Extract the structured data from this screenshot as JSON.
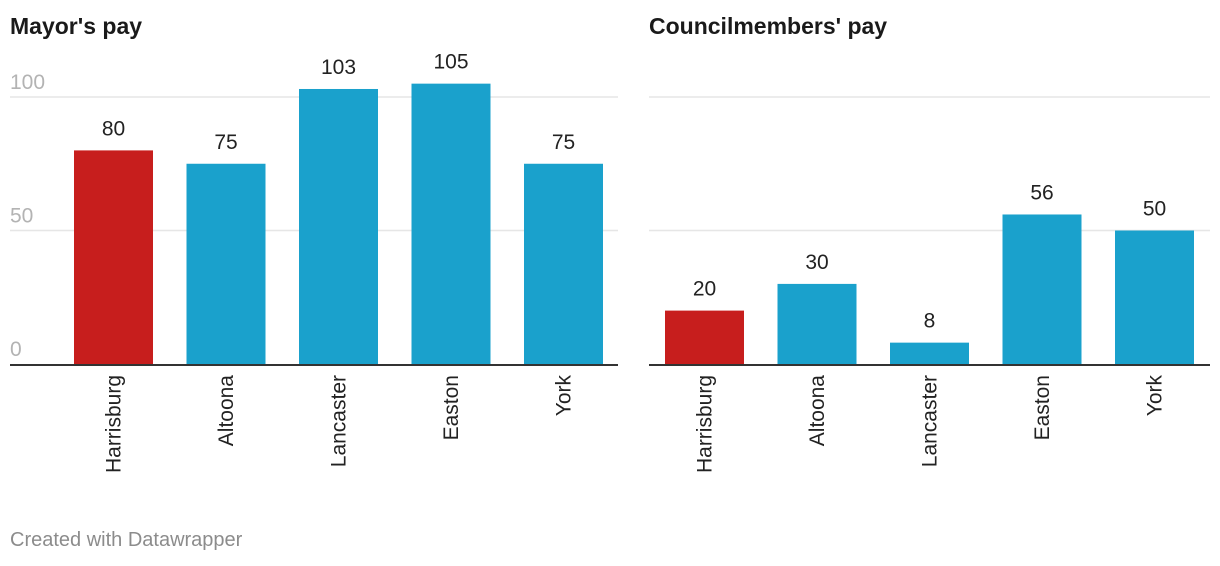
{
  "footer": "Created with Datawrapper",
  "colors": {
    "highlight": "#c71e1d",
    "bar": "#1aa1cc",
    "gridline": "#e6e6e6",
    "baseline": "#333333",
    "tick_text": "#b3b3b3"
  },
  "chart_data": [
    {
      "type": "bar",
      "title": "Mayor's pay",
      "categories": [
        "Harrisburg",
        "Altoona",
        "Lancaster",
        "Easton",
        "York"
      ],
      "values": [
        80,
        75,
        103,
        105,
        75
      ],
      "value_labels": [
        "80",
        "75",
        "103",
        "105",
        "75"
      ],
      "highlight": "Harrisburg",
      "yticks": [
        0,
        50,
        100
      ],
      "ytick_labels": [
        "0",
        "50",
        "100"
      ],
      "ylim": [
        0,
        100
      ],
      "grid": true,
      "xlabel": "",
      "ylabel": ""
    },
    {
      "type": "bar",
      "title": "Councilmembers' pay",
      "categories": [
        "Harrisburg",
        "Altoona",
        "Lancaster",
        "Easton",
        "York"
      ],
      "values": [
        20,
        30,
        8,
        56,
        50
      ],
      "value_labels": [
        "20",
        "30",
        "8",
        "56",
        "50"
      ],
      "highlight": "Harrisburg",
      "yticks": [
        0,
        50,
        100
      ],
      "ytick_labels": [
        "",
        "",
        ""
      ],
      "ylim": [
        0,
        100
      ],
      "grid": true,
      "xlabel": "",
      "ylabel": ""
    }
  ]
}
